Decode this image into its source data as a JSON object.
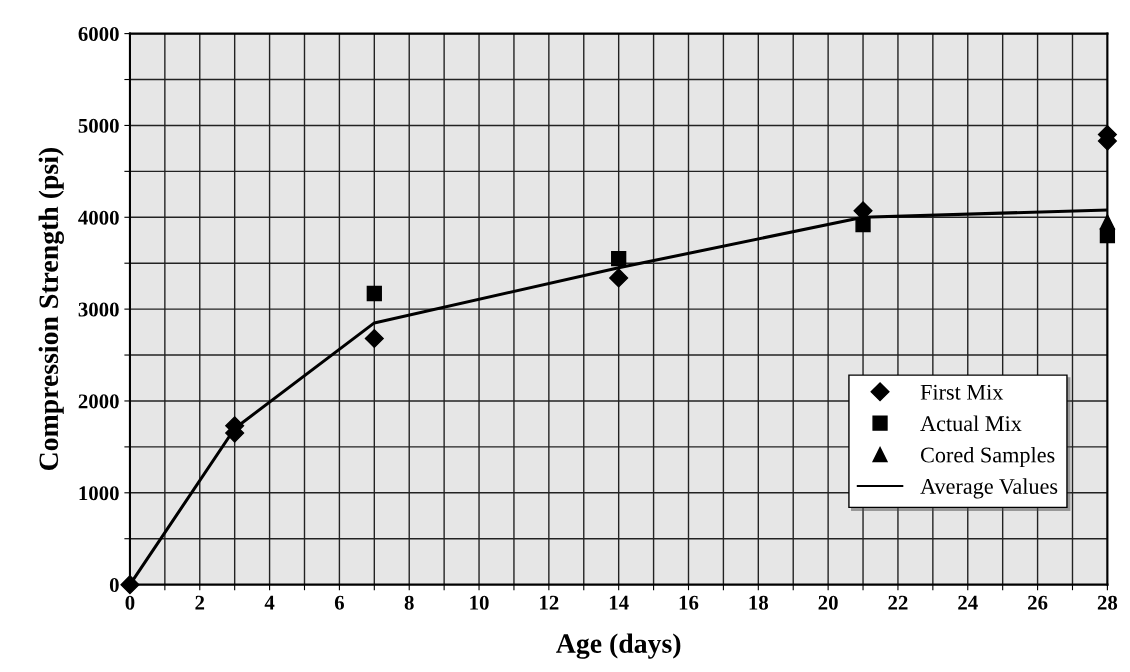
{
  "chart_data": {
    "type": "scatter",
    "xlabel": "Age (days)",
    "ylabel": "Compression Strength (psi)",
    "xlim": [
      0,
      28
    ],
    "ylim": [
      0,
      6000
    ],
    "xticks": [
      0,
      {
        "value": 1,
        "label": null
      },
      2,
      {
        "value": 3,
        "label": null
      },
      4,
      {
        "value": 5,
        "label": null
      },
      6,
      {
        "value": 7,
        "label": null
      },
      8,
      {
        "value": 9,
        "label": null
      },
      10,
      {
        "value": 11,
        "label": null
      },
      12,
      {
        "value": 13,
        "label": null
      },
      14,
      {
        "value": 15,
        "label": null
      },
      16,
      {
        "value": 17,
        "label": null
      },
      18,
      {
        "value": 19,
        "label": null
      },
      20,
      {
        "value": 21,
        "label": null
      },
      22,
      {
        "value": 23,
        "label": null
      },
      24,
      {
        "value": 25,
        "label": null
      },
      26,
      {
        "value": 27,
        "label": null
      },
      28
    ],
    "yticks": [
      0,
      {
        "value": 500,
        "label": null
      },
      1000,
      {
        "value": 1500,
        "label": null
      },
      2000,
      {
        "value": 2500,
        "label": null
      },
      3000,
      {
        "value": 3500,
        "label": null
      },
      4000,
      {
        "value": 4500,
        "label": null
      },
      5000,
      {
        "value": 5500,
        "label": null
      },
      6000
    ],
    "grid": true,
    "legend": "bottom right",
    "series": [
      {
        "name": "First Mix",
        "marker": "diamond",
        "color": "#000000",
        "x": [
          0,
          3,
          3,
          7,
          14,
          21,
          28,
          28
        ],
        "values": [
          0,
          1650,
          1730,
          2680,
          3340,
          4070,
          4830,
          4900
        ]
      },
      {
        "name": "Actual Mix",
        "marker": "square",
        "color": "#000000",
        "x": [
          7,
          14,
          21,
          28
        ],
        "values": [
          3170,
          3550,
          3920,
          3800
        ]
      },
      {
        "name": "Cored Samples",
        "marker": "triangle",
        "color": "#000000",
        "x": [
          28
        ],
        "values": [
          3950
        ]
      },
      {
        "name": "Average Values",
        "type": "line",
        "marker": "none",
        "line_style": "solid",
        "color": "#000000",
        "x": [
          0,
          3,
          7,
          14,
          21,
          28
        ],
        "values": [
          0,
          1700,
          2850,
          3450,
          4000,
          4080
        ]
      }
    ]
  }
}
